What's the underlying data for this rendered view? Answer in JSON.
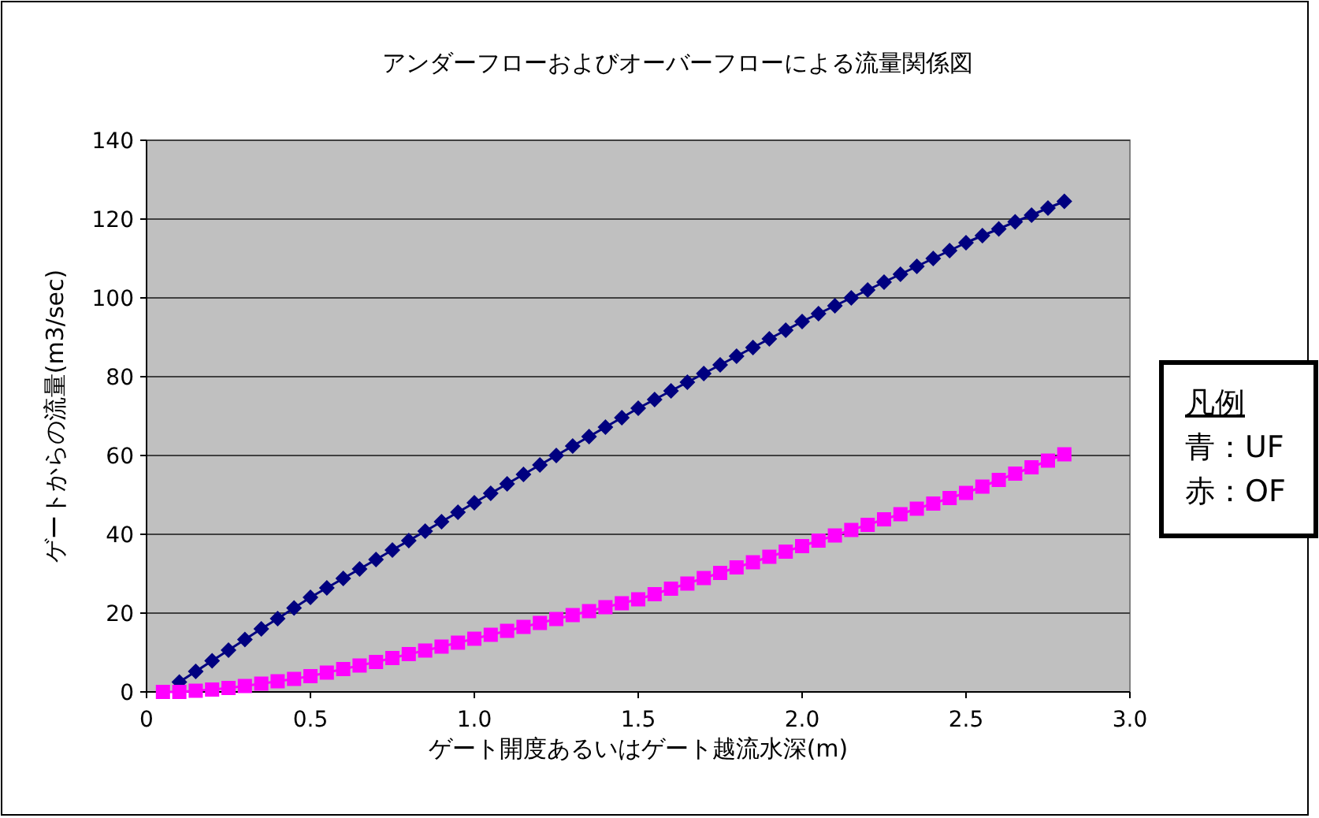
{
  "chart_data": {
    "type": "line",
    "title": "アンダーフローおよびオーバーフローによる流量関係図",
    "xlabel": "ゲート開度あるいはゲート越流水深(m)",
    "ylabel": "ゲートからの流量(m3/sec)",
    "xlim": [
      0,
      3
    ],
    "xticks": [
      0,
      0.5,
      {
        "value": 1,
        "label": "1.0"
      },
      1.5,
      {
        "value": 2,
        "label": "2.0"
      },
      2.5,
      {
        "value": 3,
        "label": "3.0"
      }
    ],
    "ylim": [
      0,
      140
    ],
    "yticks": [
      0,
      20,
      40,
      60,
      80,
      100,
      120,
      140
    ],
    "grid": "y",
    "annotations": [
      "凡例",
      "青：UF",
      "赤：OF"
    ],
    "series": [
      {
        "color": "#000080",
        "marker": "diamond",
        "x": [
          0.1,
          0.15,
          0.2,
          0.25,
          0.3,
          0.35,
          0.4,
          0.45,
          0.5,
          0.55,
          0.6,
          0.65,
          0.7,
          0.75,
          0.8,
          0.85,
          0.9,
          0.95,
          1.0,
          1.05,
          1.1,
          1.15,
          1.2,
          1.25,
          1.3,
          1.35,
          1.4,
          1.45,
          1.5,
          1.55,
          1.6,
          1.65,
          1.7,
          1.75,
          1.8,
          1.85,
          1.9,
          1.95,
          2.0,
          2.05,
          2.1,
          2.15,
          2.2,
          2.25,
          2.3,
          2.35,
          2.4,
          2.45,
          2.5,
          2.55,
          2.6,
          2.65,
          2.7,
          2.75,
          2.8
        ],
        "values": [
          2.5,
          5.2,
          7.9,
          10.6,
          13.3,
          16,
          18.6,
          21.3,
          24,
          26.4,
          28.8,
          31.2,
          33.6,
          36,
          38.4,
          40.8,
          43.2,
          45.6,
          48,
          50.4,
          52.8,
          55.2,
          57.6,
          60,
          62.4,
          64.8,
          67.2,
          69.6,
          72,
          74.2,
          76.4,
          78.6,
          80.8,
          83,
          85.2,
          87.4,
          89.6,
          91.8,
          94,
          96,
          98,
          100,
          102,
          104,
          106,
          108,
          110,
          112,
          114,
          115.8,
          117.5,
          119.3,
          121,
          122.8,
          124.5
        ]
      },
      {
        "color": "#ff00ff",
        "marker": "square",
        "x": [
          0.05,
          0.1,
          0.15,
          0.2,
          0.25,
          0.3,
          0.35,
          0.4,
          0.45,
          0.5,
          0.55,
          0.6,
          0.65,
          0.7,
          0.75,
          0.8,
          0.85,
          0.9,
          0.95,
          1.0,
          1.05,
          1.1,
          1.15,
          1.2,
          1.25,
          1.3,
          1.35,
          1.4,
          1.45,
          1.5,
          1.55,
          1.6,
          1.65,
          1.7,
          1.75,
          1.8,
          1.85,
          1.9,
          1.95,
          2.0,
          2.05,
          2.1,
          2.15,
          2.2,
          2.25,
          2.3,
          2.35,
          2.4,
          2.45,
          2.5,
          2.55,
          2.6,
          2.65,
          2.7,
          2.75,
          2.8
        ],
        "values": [
          0,
          0,
          0.3,
          0.6,
          1,
          1.5,
          2.1,
          2.7,
          3.3,
          4,
          4.9,
          5.8,
          6.7,
          7.6,
          8.6,
          9.6,
          10.5,
          11.5,
          12.5,
          13.5,
          14.5,
          15.5,
          16.5,
          17.5,
          18.5,
          19.5,
          20.5,
          21.5,
          22.5,
          23.5,
          24.8,
          26.2,
          27.5,
          28.9,
          30.2,
          31.6,
          32.9,
          34.3,
          35.6,
          37,
          38.4,
          39.7,
          41.1,
          42.4,
          43.8,
          45.1,
          46.5,
          47.8,
          49.2,
          50.5,
          52.1,
          53.8,
          55.4,
          57,
          58.7,
          60.3
        ]
      }
    ]
  }
}
